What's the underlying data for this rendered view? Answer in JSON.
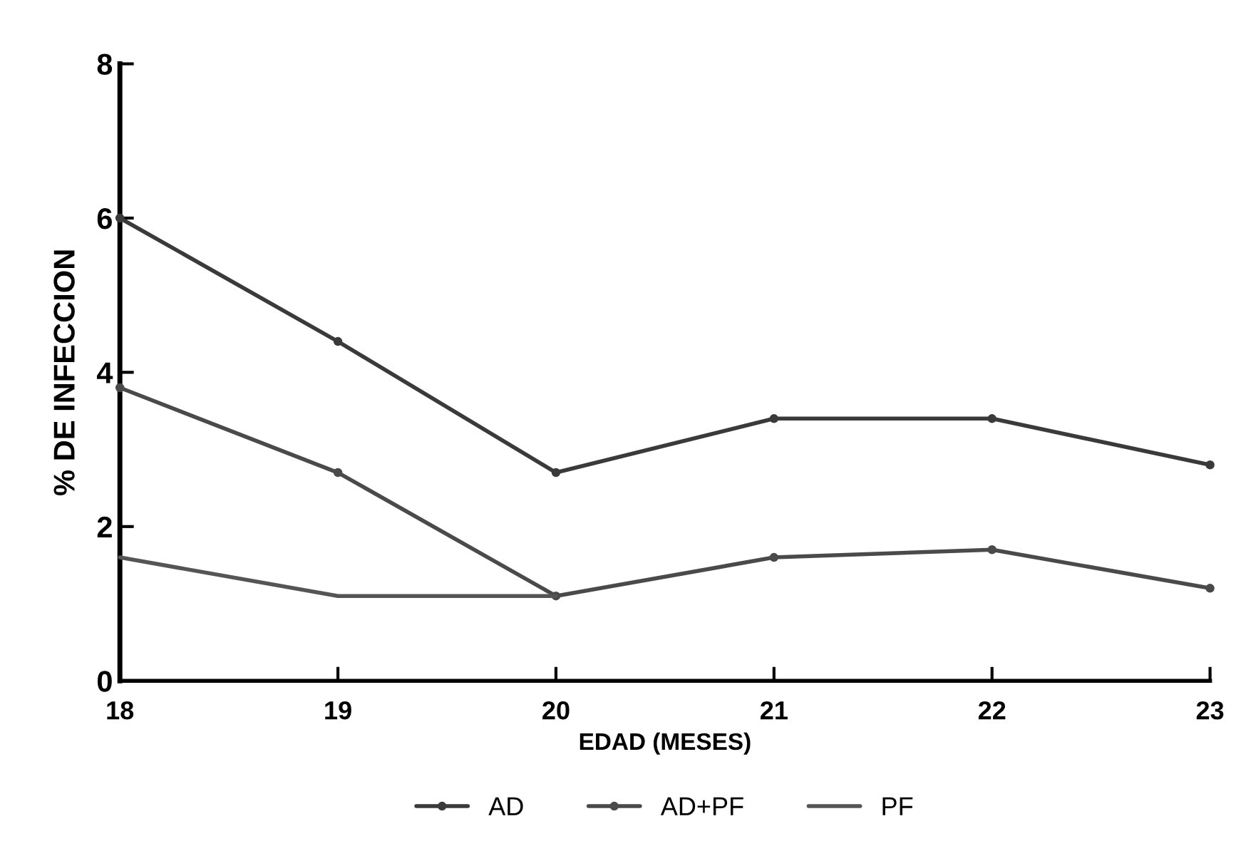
{
  "chart_data": {
    "type": "line",
    "xlabel": "EDAD (MESES)",
    "ylabel": "% DE INFECCION",
    "x": [
      18,
      19,
      20,
      21,
      22,
      23
    ],
    "xlim": [
      18,
      23
    ],
    "xticks": [
      18,
      19,
      20,
      21,
      22,
      23
    ],
    "ylim": [
      0,
      8
    ],
    "yticks": [
      0,
      2,
      4,
      6,
      8
    ],
    "grid": false,
    "legend": "bottom",
    "line_style": "solid",
    "series": [
      {
        "name": "AD",
        "color": "#3a3a3a",
        "marker": "circle",
        "values": [
          6.0,
          4.4,
          2.7,
          3.4,
          3.4,
          2.8
        ]
      },
      {
        "name": "AD+PF",
        "color": "#4a4a4a",
        "marker": "circle",
        "values": [
          3.8,
          2.7,
          1.1,
          1.6,
          1.7,
          1.2
        ]
      },
      {
        "name": "PF",
        "color": "#555555",
        "marker": "none",
        "values": [
          1.6,
          1.1,
          1.1,
          null,
          null,
          null
        ]
      }
    ]
  }
}
